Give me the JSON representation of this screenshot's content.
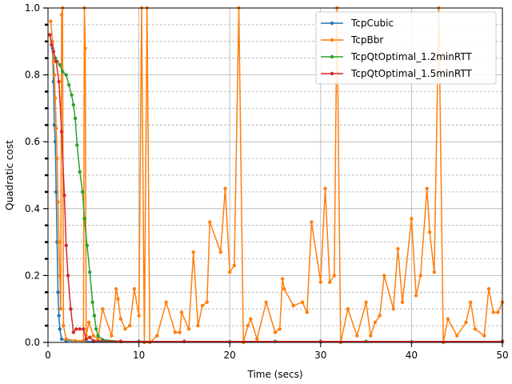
{
  "chart_data": {
    "type": "line",
    "xlabel": "Time (secs)",
    "ylabel": "Quadratic cost",
    "xlim": [
      0,
      50
    ],
    "ylim": [
      0,
      1.0
    ],
    "x_ticks": [
      "0",
      "10",
      "20",
      "30",
      "40",
      "50"
    ],
    "y_ticks": [
      "0.0",
      "0.2",
      "0.4",
      "0.6",
      "0.8",
      "1.0"
    ],
    "grid": "major solid, minor dashed",
    "legend_position": "top-right",
    "series": [
      {
        "name": "TcpCubic",
        "color": "#1f77b4",
        "points": [
          [
            0.5,
            0.88
          ],
          [
            0.6,
            0.78
          ],
          [
            0.7,
            0.65
          ],
          [
            0.8,
            0.6
          ],
          [
            0.9,
            0.45
          ],
          [
            1.0,
            0.3
          ],
          [
            1.1,
            0.15
          ],
          [
            1.2,
            0.08
          ],
          [
            1.3,
            0.04
          ],
          [
            1.5,
            0.01
          ],
          [
            2,
            0.005
          ],
          [
            5,
            0.003
          ],
          [
            10,
            0.003
          ],
          [
            20,
            0.002
          ],
          [
            30,
            0.002
          ],
          [
            40,
            0.002
          ],
          [
            50,
            0.002
          ]
        ]
      },
      {
        "name": "TcpBbr",
        "color": "#ff7f0e",
        "points": [
          [
            0.3,
            0.96
          ],
          [
            0.5,
            0.9
          ],
          [
            0.6,
            0.84
          ],
          [
            0.7,
            0.8
          ],
          [
            0.8,
            0.73
          ],
          [
            0.9,
            0.64
          ],
          [
            1.0,
            0.55
          ],
          [
            1.1,
            0.42
          ],
          [
            1.2,
            0.3
          ],
          [
            1.3,
            0.2
          ],
          [
            1.4,
            0.1
          ],
          [
            1.5,
            0.98
          ],
          [
            1.6,
            1.0
          ],
          [
            1.7,
            0.05
          ],
          [
            2,
            0.01
          ],
          [
            3,
            0.005
          ],
          [
            3.9,
            0.005
          ],
          [
            4.0,
            1.0
          ],
          [
            4.1,
            0.88
          ],
          [
            4.2,
            0.02
          ],
          [
            4.5,
            0.06
          ],
          [
            5,
            0.02
          ],
          [
            5.5,
            0.01
          ],
          [
            6,
            0.1
          ],
          [
            7,
            0.02
          ],
          [
            7.5,
            0.16
          ],
          [
            7.7,
            0.13
          ],
          [
            8,
            0.07
          ],
          [
            8.5,
            0.04
          ],
          [
            9,
            0.05
          ],
          [
            9.5,
            0.16
          ],
          [
            10,
            0.08
          ],
          [
            10.3,
            1.0
          ],
          [
            10.6,
            0.0
          ],
          [
            10.9,
            1.0
          ],
          [
            11.2,
            0.0
          ],
          [
            12,
            0.02
          ],
          [
            13,
            0.12
          ],
          [
            14,
            0.03
          ],
          [
            14.5,
            0.03
          ],
          [
            14.7,
            0.09
          ],
          [
            15.5,
            0.04
          ],
          [
            16,
            0.27
          ],
          [
            16.5,
            0.05
          ],
          [
            17,
            0.11
          ],
          [
            17.5,
            0.12
          ],
          [
            17.8,
            0.36
          ],
          [
            19,
            0.27
          ],
          [
            19.5,
            0.46
          ],
          [
            20,
            0.21
          ],
          [
            20.5,
            0.23
          ],
          [
            21,
            1.0
          ],
          [
            21.5,
            0.0
          ],
          [
            22,
            0.05
          ],
          [
            22.3,
            0.07
          ],
          [
            23,
            0.01
          ],
          [
            24,
            0.12
          ],
          [
            25,
            0.03
          ],
          [
            25.5,
            0.04
          ],
          [
            25.8,
            0.19
          ],
          [
            26,
            0.16
          ],
          [
            27,
            0.11
          ],
          [
            28,
            0.12
          ],
          [
            28.5,
            0.09
          ],
          [
            29,
            0.36
          ],
          [
            30,
            0.18
          ],
          [
            30.5,
            0.46
          ],
          [
            31,
            0.18
          ],
          [
            31.5,
            0.2
          ],
          [
            31.8,
            1.0
          ],
          [
            32.2,
            0.0
          ],
          [
            33,
            0.1
          ],
          [
            34,
            0.02
          ],
          [
            35,
            0.12
          ],
          [
            35.5,
            0.02
          ],
          [
            36,
            0.06
          ],
          [
            36.5,
            0.08
          ],
          [
            37,
            0.2
          ],
          [
            38,
            0.1
          ],
          [
            38.5,
            0.28
          ],
          [
            39,
            0.12
          ],
          [
            40,
            0.37
          ],
          [
            40.5,
            0.14
          ],
          [
            41,
            0.2
          ],
          [
            41.7,
            0.46
          ],
          [
            42,
            0.33
          ],
          [
            42.5,
            0.21
          ],
          [
            43,
            1.0
          ],
          [
            43.5,
            0.0
          ],
          [
            44,
            0.07
          ],
          [
            45,
            0.02
          ],
          [
            46,
            0.06
          ],
          [
            46.5,
            0.12
          ],
          [
            47,
            0.04
          ],
          [
            48,
            0.02
          ],
          [
            48.5,
            0.16
          ],
          [
            49,
            0.09
          ],
          [
            49.5,
            0.09
          ],
          [
            50,
            0.12
          ]
        ]
      },
      {
        "name": "TcpQtOptimal_1.2minRTT",
        "color": "#2ca02c",
        "points": [
          [
            0.4,
            0.89
          ],
          [
            0.6,
            0.87
          ],
          [
            0.8,
            0.85
          ],
          [
            1.0,
            0.84
          ],
          [
            1.3,
            0.83
          ],
          [
            1.6,
            0.81
          ],
          [
            2.0,
            0.8
          ],
          [
            2.3,
            0.77
          ],
          [
            2.6,
            0.74
          ],
          [
            2.8,
            0.71
          ],
          [
            3.0,
            0.67
          ],
          [
            3.2,
            0.59
          ],
          [
            3.5,
            0.51
          ],
          [
            3.8,
            0.45
          ],
          [
            4.0,
            0.37
          ],
          [
            4.3,
            0.29
          ],
          [
            4.6,
            0.21
          ],
          [
            4.9,
            0.12
          ],
          [
            5.1,
            0.08
          ],
          [
            5.3,
            0.04
          ],
          [
            5.5,
            0.02
          ],
          [
            6,
            0.008
          ],
          [
            8,
            0.003
          ],
          [
            15,
            0.003
          ],
          [
            25,
            0.003
          ],
          [
            35,
            0.003
          ],
          [
            50,
            0.003
          ]
        ]
      },
      {
        "name": "TcpQtOptimal_1.5minRTT",
        "color": "#d62728",
        "points": [
          [
            0.2,
            0.92
          ],
          [
            0.4,
            0.89
          ],
          [
            0.6,
            0.87
          ],
          [
            0.9,
            0.84
          ],
          [
            1.2,
            0.78
          ],
          [
            1.5,
            0.63
          ],
          [
            1.8,
            0.44
          ],
          [
            2.0,
            0.29
          ],
          [
            2.2,
            0.2
          ],
          [
            2.5,
            0.1
          ],
          [
            2.8,
            0.03
          ],
          [
            3.1,
            0.04
          ],
          [
            3.5,
            0.04
          ],
          [
            3.9,
            0.04
          ],
          [
            4.2,
            0.01
          ],
          [
            4.6,
            0.015
          ],
          [
            5,
            0.005
          ],
          [
            8,
            0.003
          ],
          [
            15,
            0.003
          ],
          [
            30,
            0.003
          ],
          [
            50,
            0.003
          ]
        ]
      }
    ]
  }
}
